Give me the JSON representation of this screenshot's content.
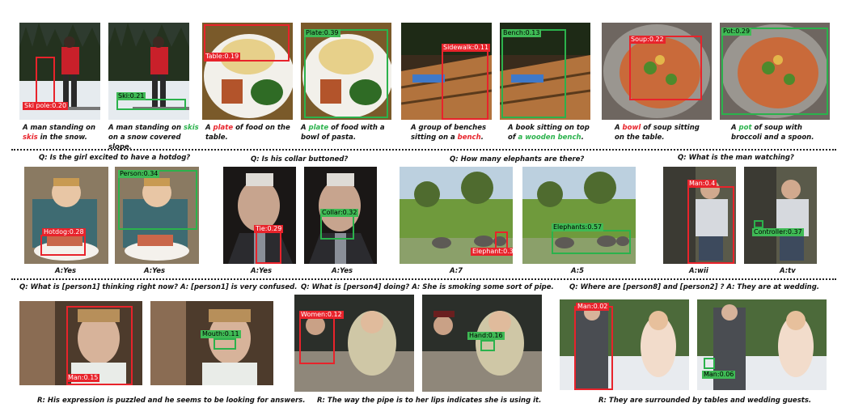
{
  "colors": {
    "red": "#e8232b",
    "green": "#2bb24c"
  },
  "captioning": [
    {
      "parts": [
        [
          "A man standing on ",
          ""
        ],
        [
          "skis",
          "r"
        ],
        [
          " in the snow.",
          ""
        ]
      ]
    },
    {
      "parts": [
        [
          "A man standing on ",
          ""
        ],
        [
          "skis",
          "g"
        ],
        [
          " on a snow covered slope.",
          ""
        ]
      ]
    },
    {
      "parts": [
        [
          "A ",
          ""
        ],
        [
          "plate",
          "r"
        ],
        [
          " of food on the table.",
          ""
        ]
      ]
    },
    {
      "parts": [
        [
          "A ",
          ""
        ],
        [
          "plate",
          "g"
        ],
        [
          " of food with a bowl of pasta.",
          ""
        ]
      ]
    },
    {
      "parts": [
        [
          "A group of benches sitting on a ",
          ""
        ],
        [
          "bench",
          "r"
        ],
        [
          ".",
          ""
        ]
      ]
    },
    {
      "parts": [
        [
          "A book sitting on top of ",
          ""
        ],
        [
          "a wooden bench",
          "g"
        ],
        [
          ".",
          ""
        ]
      ]
    },
    {
      "parts": [
        [
          "A ",
          ""
        ],
        [
          "bowl",
          "r"
        ],
        [
          " of soup sitting on the table.",
          ""
        ]
      ]
    },
    {
      "parts": [
        [
          "A ",
          ""
        ],
        [
          "pot",
          "g"
        ],
        [
          " of soup with broccoli and a spoon.",
          ""
        ]
      ]
    }
  ],
  "labels": {
    "ski_pole": "Ski pole:0.20",
    "ski": "Ski:0.21",
    "table": "Table:0.19",
    "plate": "Plate:0.39",
    "sidewalk": "Sidewalk:0.11",
    "bench": "Bench:0.13",
    "soup": "Soup:0.22",
    "pot": "Pot:0.29",
    "hotdog": "Hotdog:0.28",
    "person": "Person:0.34",
    "tie": "Tie:0.29",
    "collar": "Collar:0.32",
    "elephant": "Elephant:0.36",
    "elephants": "Elephants:0.57",
    "man_wii": "Man:0.4",
    "controller": "Controller:0.37",
    "man_conf": "Man:0.15",
    "mouth": "Mouth:0.11",
    "women": "Women:0.12",
    "hand": "Hand:0.16",
    "man_wed": "Man:0.02",
    "man_wed2": "Man:0.06"
  },
  "vqa": {
    "questions": [
      "Q: Is the girl excited to have a hotdog?",
      "Q: Is his collar buttoned?",
      "Q: How many elephants are there?",
      "Q: What is the man watching?"
    ],
    "answers": [
      "A:Yes",
      "A:Yes",
      "A:Yes",
      "A:Yes",
      "A:7",
      "A:5",
      "A:wii",
      "A:tv"
    ]
  },
  "vcr": {
    "qa": [
      "Q: What is [person1] thinking right now?  A: [person1] is very confused.",
      "Q: What is [person4] doing?   A: She is smoking some sort of pipe.",
      "Q: Where are [person8] and [person2] ?   A: They are at wedding."
    ],
    "reasons": [
      "R: His expression is puzzled and he seems to be looking for answers.",
      "R: The way the pipe is to her lips indicates she is using it.",
      "R: They are surrounded by tables and wedding guests."
    ]
  }
}
